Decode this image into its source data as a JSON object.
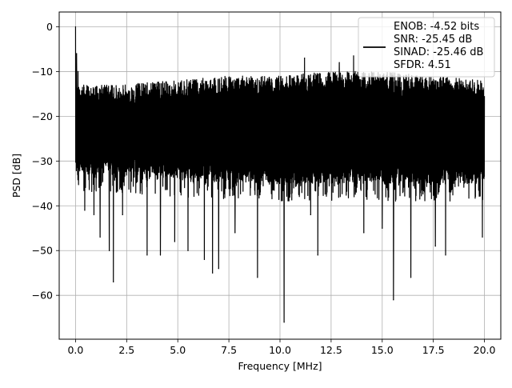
{
  "chart_data": {
    "type": "line",
    "title": "",
    "xlabel": "Frequency [MHz]",
    "ylabel": "PSD [dB]",
    "xlim": [
      -0.8,
      20.8
    ],
    "ylim": [
      -69.8,
      3.3
    ],
    "xticks": [
      0.0,
      2.5,
      5.0,
      7.5,
      10.0,
      12.5,
      15.0,
      17.5,
      20.0
    ],
    "xtick_labels": [
      "0.0",
      "2.5",
      "5.0",
      "7.5",
      "10.0",
      "12.5",
      "15.0",
      "17.5",
      "20.0"
    ],
    "yticks": [
      0,
      -10,
      -20,
      -30,
      -40,
      -50,
      -60
    ],
    "ytick_labels": [
      "0",
      "−10",
      "−20",
      "−30",
      "−40",
      "−50",
      "−60"
    ],
    "grid": true,
    "legend_position": "top-right",
    "line_color": "#000000",
    "legend": {
      "lines": [
        "ENOB: -4.52 bits",
        "SNR: -25.45 dB",
        "SINAD: -25.46 dB",
        "SFDR: 4.51"
      ]
    },
    "series": [
      {
        "noise_band": {
          "x_start": 0.0,
          "x_end": 20.0,
          "upper_envelope": [
            [
              0,
              -13
            ],
            [
              2,
              -13
            ],
            [
              5,
              -12
            ],
            [
              7.5,
              -11
            ],
            [
              10,
              -11
            ],
            [
              12.5,
              -10
            ],
            [
              15,
              -10
            ],
            [
              17.5,
              -11
            ],
            [
              20,
              -12
            ]
          ],
          "lower_envelope": [
            [
              0,
              -33
            ],
            [
              2,
              -33
            ],
            [
              5,
              -34
            ],
            [
              10,
              -35
            ],
            [
              15,
              -35
            ],
            [
              20,
              -35
            ]
          ]
        },
        "peaks": [
          {
            "x": 0.0,
            "y": 0
          },
          {
            "x": 0.05,
            "y": -6
          },
          {
            "x": 0.12,
            "y": -10
          }
        ],
        "dips": [
          {
            "x": 0.1,
            "y": -33
          },
          {
            "x": 0.45,
            "y": -41
          },
          {
            "x": 0.9,
            "y": -42
          },
          {
            "x": 1.2,
            "y": -47
          },
          {
            "x": 1.65,
            "y": -50
          },
          {
            "x": 1.85,
            "y": -57
          },
          {
            "x": 2.3,
            "y": -42
          },
          {
            "x": 3.5,
            "y": -51
          },
          {
            "x": 4.15,
            "y": -51
          },
          {
            "x": 4.85,
            "y": -48
          },
          {
            "x": 5.5,
            "y": -50
          },
          {
            "x": 6.3,
            "y": -52
          },
          {
            "x": 6.7,
            "y": -55
          },
          {
            "x": 7.0,
            "y": -54
          },
          {
            "x": 7.8,
            "y": -46
          },
          {
            "x": 8.9,
            "y": -56
          },
          {
            "x": 10.2,
            "y": -66
          },
          {
            "x": 11.5,
            "y": -42
          },
          {
            "x": 11.85,
            "y": -51
          },
          {
            "x": 14.1,
            "y": -46
          },
          {
            "x": 15.0,
            "y": -45
          },
          {
            "x": 15.55,
            "y": -61
          },
          {
            "x": 16.4,
            "y": -56
          },
          {
            "x": 17.6,
            "y": -49
          },
          {
            "x": 18.1,
            "y": -51
          },
          {
            "x": 19.9,
            "y": -47
          }
        ],
        "spikes_up": [
          {
            "x": 11.2,
            "y": -7
          },
          {
            "x": 13.6,
            "y": -6.5
          },
          {
            "x": 12.9,
            "y": -8
          }
        ]
      }
    ]
  }
}
